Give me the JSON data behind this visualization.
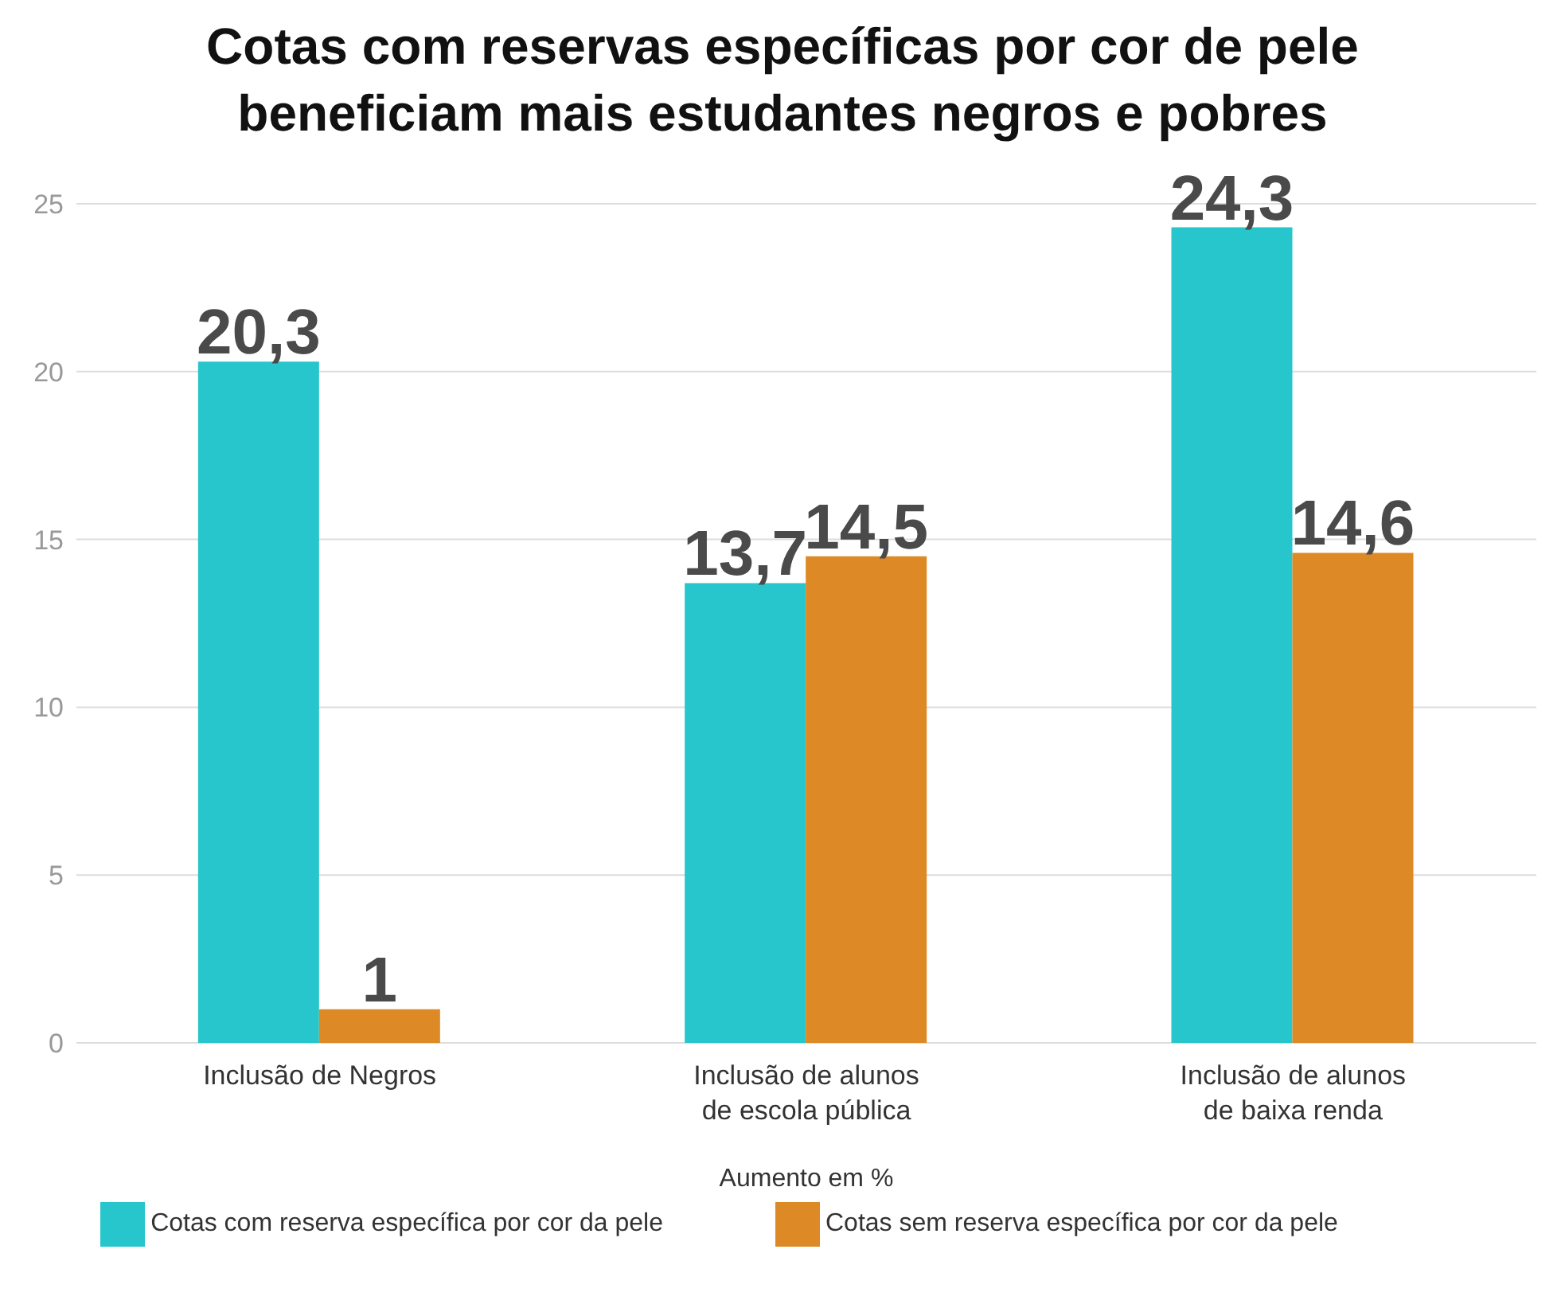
{
  "chart_data": {
    "type": "bar",
    "title": "Cotas com reservas específicas por cor de pele beneficiam mais estudantes negros e pobres",
    "xlabel": "Aumento em %",
    "categories": [
      "Inclusão de Negros",
      "Inclusão de alunos de escola pública",
      "Inclusão de alunos de baixa renda"
    ],
    "series": [
      {
        "name": "Cotas com reserva específica por cor da pele",
        "color": "#26c6cc",
        "values": [
          20.3,
          13.7,
          24.3
        ],
        "value_labels": [
          "20,3",
          "13,7",
          "24,3"
        ]
      },
      {
        "name": "Cotas sem reserva específica por cor da pele",
        "color": "#dd8a26",
        "values": [
          1,
          14.5,
          14.6
        ],
        "value_labels": [
          "1",
          "14,5",
          "14,6"
        ]
      }
    ],
    "ylim": [
      0,
      25
    ],
    "yticks": [
      0,
      5,
      10,
      15,
      20,
      25
    ],
    "grid": "y",
    "legend": "bottom"
  }
}
